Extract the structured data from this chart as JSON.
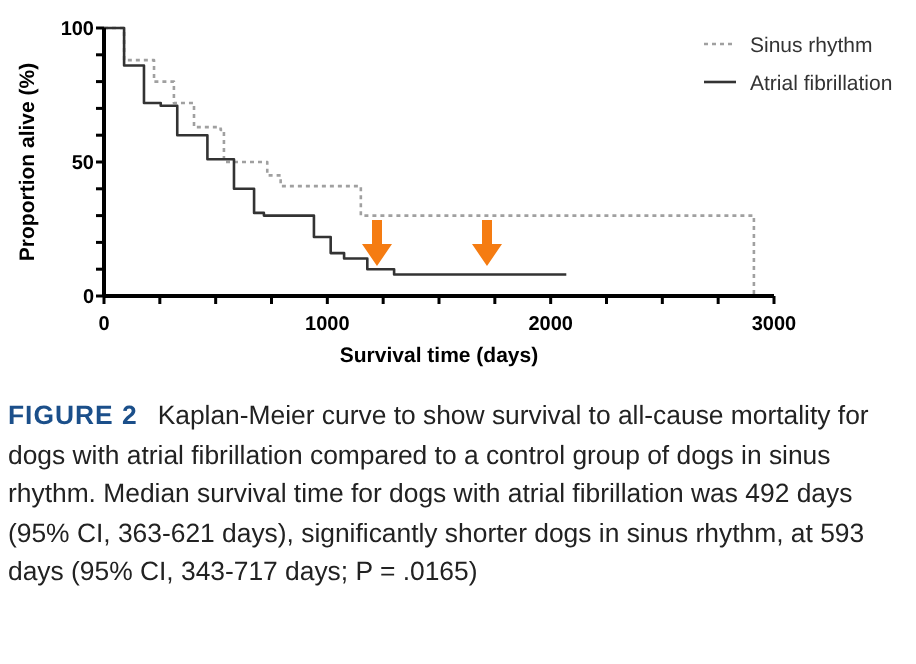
{
  "chart_data": {
    "type": "step",
    "xlabel": "Survival time (days)",
    "ylabel": "Proportion alive (%)",
    "xlim": [
      0,
      3000
    ],
    "ylim": [
      0,
      100
    ],
    "xticks": [
      0,
      {
        "value": 250,
        "label": null
      },
      {
        "value": 500,
        "label": null
      },
      {
        "value": 750,
        "label": null
      },
      1000,
      {
        "value": 1250,
        "label": null
      },
      {
        "value": 1500,
        "label": null
      },
      {
        "value": 1750,
        "label": null
      },
      2000,
      {
        "value": 2250,
        "label": null
      },
      {
        "value": 2500,
        "label": null
      },
      {
        "value": 2750,
        "label": null
      },
      3000
    ],
    "yticks": [
      0,
      {
        "value": 10,
        "label": null
      },
      {
        "value": 20,
        "label": null
      },
      {
        "value": 30,
        "label": null
      },
      {
        "value": 40,
        "label": null
      },
      50,
      {
        "value": 60,
        "label": null
      },
      {
        "value": 70,
        "label": null
      },
      {
        "value": 80,
        "label": null
      },
      {
        "value": 90,
        "label": null
      },
      100
    ],
    "legend": "top right",
    "grid": false,
    "series": [
      {
        "name": "Sinus rhythm",
        "color": "#a0a0a0",
        "line_style": "dotted",
        "x": [
          0,
          90,
          224,
          313,
          403,
          522,
          537,
          731,
          791,
          1090,
          1150,
          2910,
          2910
        ],
        "values": [
          100,
          88,
          80,
          72,
          63,
          62,
          50,
          45,
          41,
          41,
          30,
          30,
          0
        ]
      },
      {
        "name": "Atrial fibrillation",
        "color": "#333333",
        "line_style": "solid",
        "x": [
          0,
          90,
          179,
          254,
          328,
          463,
          582,
          672,
          716,
          910,
          940,
          1015,
          1075,
          1179,
          1299,
          2070
        ],
        "values": [
          100,
          86,
          72,
          71,
          60,
          51,
          40,
          31,
          30,
          30,
          22,
          16,
          14,
          10,
          8,
          8
        ]
      }
    ],
    "annotations": [
      "FIGURE 2",
      "Kaplan-Meier curve to show survival to all-cause mortality for dogs with atrial fibrillation compared to a control group of dogs in sinus rhythm. Median survival time for dogs with atrial fibrillation was 492 days (95% CI, 363-621 days), significantly shorter dogs in sinus rhythm, at 593 days (95% CI, 343-717 days; P = .0165)"
    ]
  }
}
